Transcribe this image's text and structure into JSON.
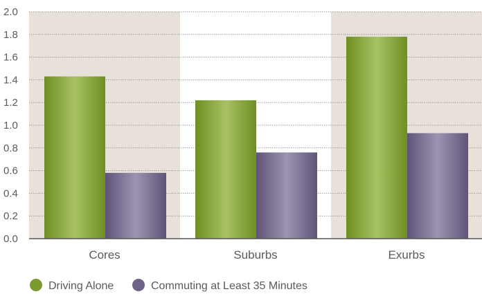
{
  "chart_data": {
    "type": "bar",
    "title": "",
    "xlabel": "",
    "ylabel": "",
    "categories": [
      "Cores",
      "Suburbs",
      "Exurbs"
    ],
    "series": [
      {
        "name": "Driving Alone",
        "values": [
          1.43,
          1.22,
          1.78
        ],
        "color": "#7a9a2e"
      },
      {
        "name": "Commuting at Least 35 Minutes",
        "values": [
          0.58,
          0.76,
          0.93
        ],
        "color": "#6e6287"
      }
    ],
    "ylim": [
      0,
      2.0
    ],
    "yticks": [
      "0.0",
      "0.2",
      "0.4",
      "0.6",
      "0.8",
      "1.0",
      "1.2",
      "1.4",
      "1.6",
      "1.8",
      "2.0"
    ],
    "grid": true,
    "category_shading": [
      "#e7e1da",
      "#ffffff",
      "#e7e1da"
    ],
    "legend_position": "bottom-left"
  }
}
